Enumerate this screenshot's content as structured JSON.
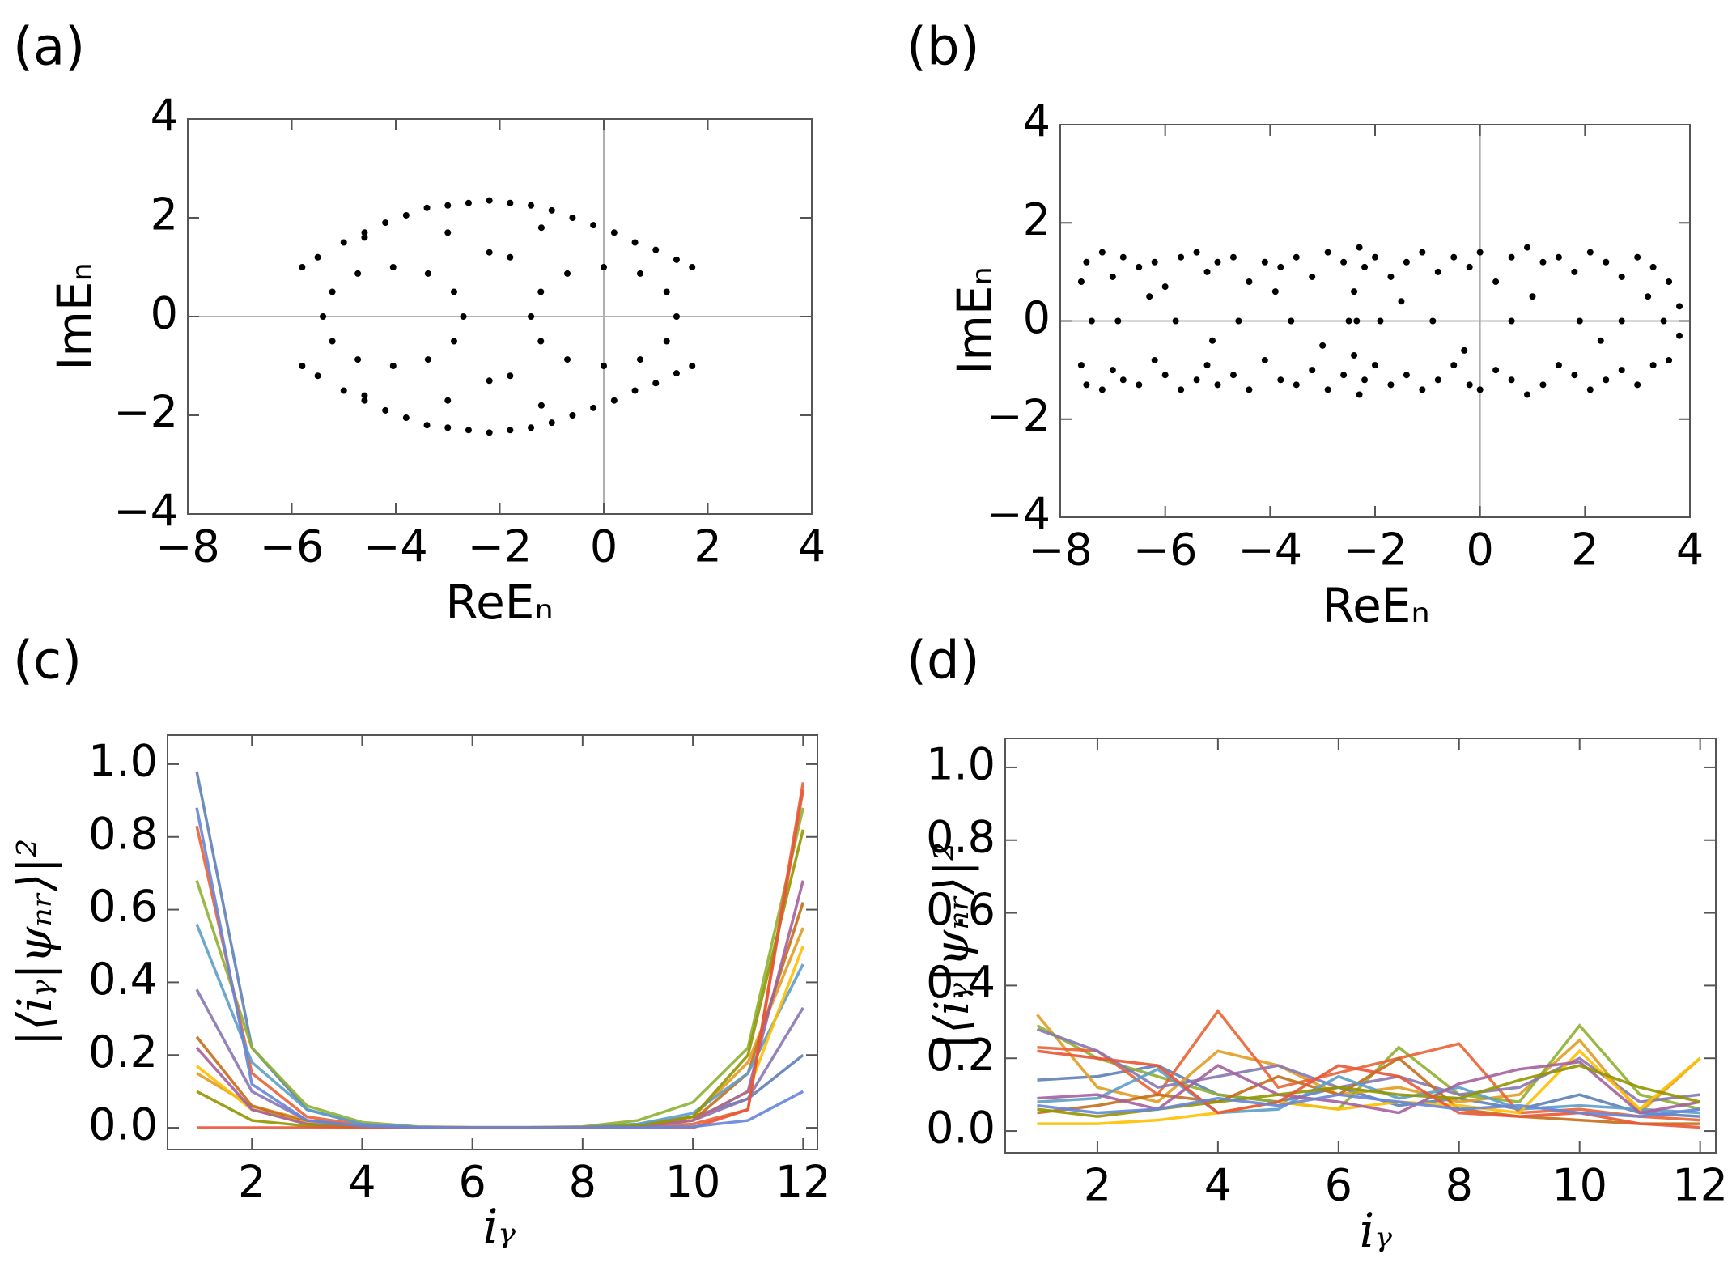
{
  "chart_data": [
    {
      "type": "scatter",
      "panel_label": "(a)",
      "x_label": "ReEₙ",
      "y_label": "ImEₙ",
      "color": "#000000",
      "x": [
        -2.7,
        -2.88,
        -3.38,
        -4.05,
        -4.73,
        -5.22,
        -5.4,
        -5.22,
        -4.73,
        -4.05,
        -3.38,
        -2.88,
        1.4,
        1.21,
        0.7,
        0,
        -0.7,
        -1.21,
        -1.4,
        -1.21,
        -0.7,
        0,
        0.7,
        1.21,
        -5.8,
        -5.5,
        -5,
        -4.6,
        -4.2,
        -3.8,
        -3.4,
        -3,
        -2.6,
        -2.2,
        -1.8,
        -1.4,
        -1,
        -0.6,
        -0.2,
        0.2,
        0.6,
        1,
        1.4,
        1.7,
        -3,
        -2.2,
        -1.8,
        -1.2,
        -4.6,
        -5.8,
        -5.5,
        -5,
        -4.6,
        -4.2,
        -3.8,
        -3.4,
        -3,
        -2.6,
        -2.2,
        -1.8,
        -1.4,
        -1,
        -0.6,
        -0.2,
        0.2,
        0.6,
        1,
        1.4,
        1.7,
        -3,
        -2.2,
        -1.8,
        -1.2,
        -4.6
      ],
      "y": [
        0,
        0.5,
        0.87,
        1,
        0.87,
        0.5,
        0,
        -0.5,
        -0.87,
        -1,
        -0.87,
        -0.5,
        0,
        0.5,
        0.87,
        1,
        0.87,
        0.5,
        0,
        -0.5,
        -0.87,
        -1,
        -0.87,
        -0.5,
        1,
        1.2,
        1.5,
        1.7,
        1.9,
        2.05,
        2.2,
        2.25,
        2.3,
        2.35,
        2.3,
        2.25,
        2.15,
        2,
        1.85,
        1.7,
        1.5,
        1.35,
        1.15,
        1,
        1.7,
        1.3,
        1.2,
        1.8,
        1.6,
        -1,
        -1.2,
        -1.5,
        -1.7,
        -1.9,
        -2.05,
        -2.2,
        -2.25,
        -2.3,
        -2.35,
        -2.3,
        -2.25,
        -2.15,
        -2,
        -1.85,
        -1.7,
        -1.5,
        -1.35,
        -1.15,
        -1,
        -1.7,
        -1.3,
        -1.2,
        -1.8,
        -1.6
      ],
      "xlim": [
        -8,
        4
      ],
      "ylim": [
        -4,
        4
      ],
      "xticks": [
        {
          "value": -8,
          "label": "−8"
        },
        {
          "value": -6,
          "label": "−6"
        },
        {
          "value": -4,
          "label": "−4"
        },
        {
          "value": -2,
          "label": "−2"
        },
        0,
        2,
        4
      ],
      "yticks": [
        {
          "value": -4,
          "label": "−4"
        },
        {
          "value": -2,
          "label": "−2"
        },
        0,
        2,
        4
      ]
    },
    {
      "type": "scatter",
      "panel_label": "(b)",
      "x_label": "ReEₙ",
      "y_label": "ImEₙ",
      "color": "#000000",
      "x": [
        -7.6,
        -7.5,
        -7.2,
        -7.0,
        -6.8,
        -6.5,
        -6.2,
        -6.0,
        -5.7,
        -5.4,
        -5.2,
        -5.0,
        -4.7,
        -4.4,
        -4.1,
        -3.8,
        -3.5,
        -3.2,
        -2.9,
        -2.6,
        -2.4,
        -2.3,
        -2.2,
        -2.0,
        -1.7,
        -1.4,
        -1.1,
        -0.8,
        -0.5,
        -0.2,
        0.0,
        0.3,
        0.6,
        0.9,
        1.2,
        1.5,
        1.8,
        2.1,
        2.4,
        2.7,
        3.0,
        3.3,
        3.6,
        3.8,
        -7.6,
        -7.5,
        -7.2,
        -7.0,
        -6.8,
        -6.5,
        -6.2,
        -6.0,
        -5.7,
        -5.4,
        -5.2,
        -5.0,
        -4.7,
        -4.4,
        -4.1,
        -3.8,
        -3.5,
        -3.2,
        -2.9,
        -2.6,
        -2.4,
        -2.3,
        -2.2,
        -2.0,
        -1.7,
        -1.4,
        -1.1,
        -0.8,
        -0.5,
        -0.2,
        0.0,
        0.3,
        0.6,
        0.9,
        1.2,
        1.5,
        1.8,
        2.1,
        2.4,
        2.7,
        3.0,
        3.3,
        3.6,
        3.8,
        -7.4,
        -6.9,
        -5.8,
        -4.6,
        -3.6,
        -2.5,
        -2.35,
        -1.9,
        -0.9,
        0.6,
        1.9,
        2.7,
        3.5,
        -6.3,
        -5.1,
        -3.9,
        -3.0,
        -1.5,
        -0.3,
        1.0,
        2.3,
        3.2
      ],
      "y": [
        0.8,
        1.2,
        1.4,
        0.9,
        1.3,
        1.1,
        1.2,
        0.7,
        1.3,
        1.4,
        1.0,
        1.2,
        1.3,
        0.8,
        1.2,
        1.1,
        1.3,
        0.9,
        1.4,
        1.2,
        0.6,
        1.5,
        1.1,
        1.3,
        0.9,
        1.2,
        1.4,
        1.0,
        1.3,
        1.1,
        1.4,
        0.8,
        1.3,
        1.5,
        1.2,
        1.3,
        1.0,
        1.4,
        1.2,
        0.9,
        1.3,
        1.1,
        0.8,
        0.3,
        -0.9,
        -1.3,
        -1.4,
        -1.0,
        -1.2,
        -1.3,
        -0.8,
        -1.1,
        -1.4,
        -1.2,
        -0.9,
        -1.3,
        -1.1,
        -1.4,
        -0.8,
        -1.2,
        -1.3,
        -1.0,
        -1.4,
        -1.1,
        -0.7,
        -1.5,
        -1.2,
        -0.9,
        -1.3,
        -1.1,
        -1.4,
        -1.2,
        -0.9,
        -1.3,
        -1.4,
        -1.0,
        -1.2,
        -1.5,
        -1.3,
        -0.9,
        -1.1,
        -1.4,
        -1.2,
        -1.0,
        -1.3,
        -0.9,
        -0.8,
        -0.3,
        0,
        0,
        0,
        0,
        0,
        0,
        0,
        0,
        0,
        0,
        0,
        0,
        0,
        0.5,
        -0.4,
        0.6,
        -0.5,
        0.4,
        -0.6,
        0.5,
        -0.4,
        0.5
      ],
      "xlim": [
        -8,
        4
      ],
      "ylim": [
        -4,
        4
      ],
      "xticks": [
        {
          "value": -8,
          "label": "−8"
        },
        {
          "value": -6,
          "label": "−6"
        },
        {
          "value": -4,
          "label": "−4"
        },
        {
          "value": -2,
          "label": "−2"
        },
        0,
        2,
        4
      ],
      "yticks": [
        {
          "value": -4,
          "label": "−4"
        },
        {
          "value": -2,
          "label": "−2"
        },
        0,
        2,
        4
      ]
    },
    {
      "type": "line",
      "panel_label": "(c)",
      "x_label": "iᵧ",
      "y_label": "|⟨iᵧ|ψₙᵣ⟩|²",
      "x": [
        1,
        2,
        3,
        4,
        5,
        6,
        7,
        8,
        9,
        10,
        11,
        12
      ],
      "series": [
        {
          "color": "#5e81b5",
          "values": [
            0.98,
            0.22,
            0.05,
            0.01,
            0.002,
            0.001,
            0.001,
            0.002,
            0.01,
            0.03,
            0.08,
            0.2
          ]
        },
        {
          "color": "#e19c24",
          "values": [
            0.15,
            0.06,
            0.02,
            0.005,
            0.001,
            0,
            0,
            0.001,
            0.005,
            0.03,
            0.18,
            0.55
          ]
        },
        {
          "color": "#8fb032",
          "values": [
            0.68,
            0.22,
            0.06,
            0.015,
            0.003,
            0.001,
            0.001,
            0.003,
            0.02,
            0.07,
            0.22,
            0.88
          ]
        },
        {
          "color": "#eb6235",
          "values": [
            0.83,
            0.15,
            0.03,
            0.008,
            0.002,
            0,
            0,
            0.001,
            0.004,
            0.01,
            0.05,
            0.95
          ]
        },
        {
          "color": "#8778b3",
          "values": [
            0.38,
            0.1,
            0.02,
            0.005,
            0.001,
            0,
            0,
            0.001,
            0.004,
            0.02,
            0.08,
            0.33
          ]
        },
        {
          "color": "#c56e1a",
          "values": [
            0.25,
            0.06,
            0.015,
            0.004,
            0.001,
            0,
            0,
            0.001,
            0.005,
            0.02,
            0.15,
            0.62
          ]
        },
        {
          "color": "#5d9ec7",
          "values": [
            0.56,
            0.18,
            0.05,
            0.01,
            0.002,
            0,
            0,
            0.002,
            0.01,
            0.04,
            0.15,
            0.45
          ]
        },
        {
          "color": "#ffbf00",
          "values": [
            0.17,
            0.05,
            0.012,
            0.003,
            0.001,
            0,
            0,
            0.001,
            0.004,
            0.02,
            0.1,
            0.5
          ]
        },
        {
          "color": "#a5609d",
          "values": [
            0.22,
            0.05,
            0.01,
            0.002,
            0,
            0,
            0,
            0.001,
            0.003,
            0.02,
            0.1,
            0.68
          ]
        },
        {
          "color": "#929600",
          "values": [
            0.1,
            0.02,
            0.005,
            0.001,
            0,
            0,
            0,
            0.001,
            0.005,
            0.03,
            0.2,
            0.82
          ]
        },
        {
          "color": "#e95536",
          "values": [
            0,
            0,
            0,
            0,
            0,
            0,
            0,
            0,
            0,
            0,
            0.05,
            0.93
          ]
        },
        {
          "color": "#6685d9",
          "values": [
            0.88,
            0.12,
            0.02,
            0.005,
            0.001,
            0,
            0,
            0,
            0.001,
            0.003,
            0.02,
            0.1
          ]
        }
      ],
      "xlim": [
        0.47,
        12.26
      ],
      "ylim": [
        -0.06,
        1.08
      ],
      "xticks": [
        2,
        4,
        6,
        8,
        10,
        12
      ],
      "yticks": [
        {
          "value": 0,
          "label": "0.0"
        },
        {
          "value": 0.2,
          "label": "0.2"
        },
        {
          "value": 0.4,
          "label": "0.4"
        },
        {
          "value": 0.6,
          "label": "0.6"
        },
        {
          "value": 0.8,
          "label": "0.8"
        },
        {
          "value": 1,
          "label": "1.0"
        }
      ]
    },
    {
      "type": "line",
      "panel_label": "(d)",
      "x_label": "iᵧ",
      "y_label": "|⟨iᵧ|ψₙᵣ⟩|²",
      "x": [
        1,
        2,
        3,
        4,
        5,
        6,
        7,
        8,
        9,
        10,
        11,
        12
      ],
      "series": [
        {
          "color": "#5e81b5",
          "values": [
            0.14,
            0.15,
            0.18,
            0.1,
            0.08,
            0.12,
            0.07,
            0.09,
            0.06,
            0.1,
            0.05,
            0.04
          ]
        },
        {
          "color": "#e19c24",
          "values": [
            0.32,
            0.12,
            0.08,
            0.22,
            0.18,
            0.1,
            0.12,
            0.08,
            0.1,
            0.25,
            0.05,
            0.2
          ]
        },
        {
          "color": "#8fb032",
          "values": [
            0.29,
            0.2,
            0.15,
            0.1,
            0.08,
            0.06,
            0.23,
            0.1,
            0.08,
            0.29,
            0.1,
            0.06
          ]
        },
        {
          "color": "#eb6235",
          "values": [
            0.23,
            0.22,
            0.1,
            0.33,
            0.12,
            0.16,
            0.2,
            0.24,
            0.05,
            0.06,
            0.04,
            0.03
          ]
        },
        {
          "color": "#8778b3",
          "values": [
            0.28,
            0.22,
            0.12,
            0.15,
            0.18,
            0.12,
            0.15,
            0.1,
            0.12,
            0.2,
            0.08,
            0.1
          ]
        },
        {
          "color": "#c56e1a",
          "values": [
            0.05,
            0.07,
            0.1,
            0.08,
            0.15,
            0.1,
            0.2,
            0.06,
            0.04,
            0.03,
            0.02,
            0.02
          ]
        },
        {
          "color": "#5d9ec7",
          "values": [
            0.08,
            0.09,
            0.17,
            0.05,
            0.06,
            0.15,
            0.09,
            0.12,
            0.06,
            0.07,
            0.06,
            0.05
          ]
        },
        {
          "color": "#ffbf00",
          "values": [
            0.02,
            0.02,
            0.03,
            0.05,
            0.08,
            0.06,
            0.08,
            0.07,
            0.05,
            0.22,
            0.06,
            0.2
          ]
        },
        {
          "color": "#a5609d",
          "values": [
            0.09,
            0.1,
            0.06,
            0.18,
            0.1,
            0.08,
            0.05,
            0.13,
            0.17,
            0.19,
            0.05,
            0.08
          ]
        },
        {
          "color": "#929600",
          "values": [
            0.06,
            0.04,
            0.06,
            0.08,
            0.1,
            0.12,
            0.1,
            0.09,
            0.14,
            0.18,
            0.12,
            0.08
          ]
        },
        {
          "color": "#e95536",
          "values": [
            0.22,
            0.2,
            0.18,
            0.05,
            0.08,
            0.18,
            0.15,
            0.05,
            0.04,
            0.05,
            0.02,
            0.01
          ]
        },
        {
          "color": "#6685d9",
          "values": [
            0.07,
            0.05,
            0.06,
            0.09,
            0.07,
            0.1,
            0.08,
            0.06,
            0.07,
            0.05,
            0.04,
            0.06
          ]
        }
      ],
      "xlim": [
        0.47,
        12.26
      ],
      "ylim": [
        -0.06,
        1.08
      ],
      "xticks": [
        2,
        4,
        6,
        8,
        10,
        12
      ],
      "yticks": [
        {
          "value": 0,
          "label": "0.0"
        },
        {
          "value": 0.2,
          "label": "0.2"
        },
        {
          "value": 0.4,
          "label": "0.4"
        },
        {
          "value": 0.6,
          "label": "0.6"
        },
        {
          "value": 0.8,
          "label": "0.8"
        },
        {
          "value": 1,
          "label": "1.0"
        }
      ]
    }
  ]
}
